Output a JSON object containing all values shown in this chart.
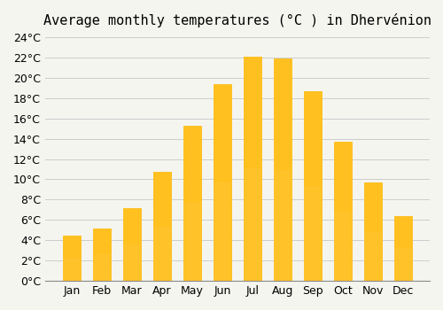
{
  "title": "Average monthly temperatures (°C ) in Dhervénion",
  "months": [
    "Jan",
    "Feb",
    "Mar",
    "Apr",
    "May",
    "Jun",
    "Jul",
    "Aug",
    "Sep",
    "Oct",
    "Nov",
    "Dec"
  ],
  "values": [
    4.5,
    5.2,
    7.2,
    10.7,
    15.3,
    19.4,
    22.1,
    21.9,
    18.7,
    13.7,
    9.7,
    6.4
  ],
  "bar_color_top": "#FFC020",
  "bar_color_bottom": "#FFD060",
  "ylim": [
    0,
    24
  ],
  "ytick_step": 2,
  "background_color": "#F5F5F0",
  "grid_color": "#CCCCCC",
  "title_fontsize": 11,
  "tick_fontsize": 9
}
